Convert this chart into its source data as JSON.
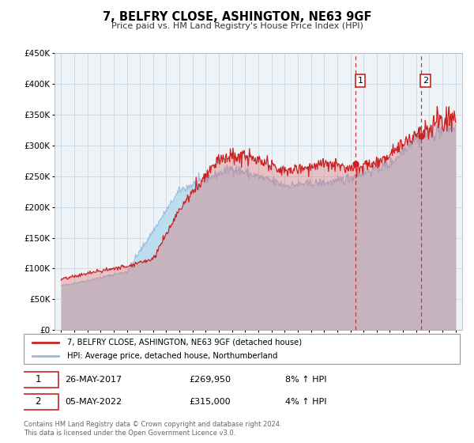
{
  "title": "7, BELFRY CLOSE, ASHINGTON, NE63 9GF",
  "subtitle": "Price paid vs. HM Land Registry's House Price Index (HPI)",
  "legend_line1": "7, BELFRY CLOSE, ASHINGTON, NE63 9GF (detached house)",
  "legend_line2": "HPI: Average price, detached house, Northumberland",
  "annotation1_label": "1",
  "annotation1_date": "26-MAY-2017",
  "annotation1_price": "£269,950",
  "annotation1_hpi": "8% ↑ HPI",
  "annotation1_year": 2017.4,
  "annotation1_value": 269950,
  "annotation2_label": "2",
  "annotation2_date": "05-MAY-2022",
  "annotation2_price": "£315,000",
  "annotation2_hpi": "4% ↑ HPI",
  "annotation2_year": 2022.35,
  "annotation2_value": 315000,
  "footer1": "Contains HM Land Registry data © Crown copyright and database right 2024.",
  "footer2": "This data is licensed under the Open Government Licence v3.0.",
  "ylim": [
    0,
    450000
  ],
  "yticks": [
    0,
    50000,
    100000,
    150000,
    200000,
    250000,
    300000,
    350000,
    400000,
    450000
  ],
  "background_color": "#ffffff",
  "grid_color": "#c8d8e8",
  "chart_bg": "#eef3f8",
  "hpi_color": "#99bbdd",
  "hpi_fill": "#bbddee",
  "property_color": "#cc2222",
  "property_fill": "#dd6666",
  "dot_color": "#cc2222",
  "vline_color": "#cc3333",
  "box_color": "#cc2222",
  "xlim_left": 1994.5,
  "xlim_right": 2025.5
}
